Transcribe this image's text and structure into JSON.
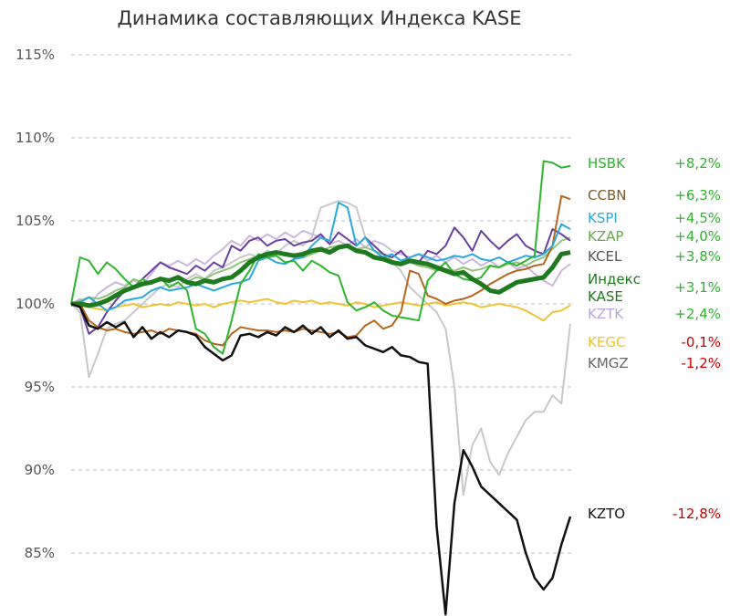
{
  "chart_data": {
    "type": "line",
    "title": "Динамика составляющих Индекса KASE",
    "xlabel": "",
    "ylabel": "",
    "ylim": [
      82,
      116
    ],
    "y_ticks": [
      "85%",
      "90%",
      "95%",
      "100%",
      "105%",
      "110%",
      "115%"
    ],
    "grid": "horizontal dashed",
    "legend": "right",
    "series": [
      {
        "name": "HSBK",
        "change": "+8,2%",
        "color": "#2db52d",
        "name_color": "#2db52d",
        "change_color": "#2db52d",
        "width": 2,
        "values": [
          100.0,
          102.8,
          102.6,
          101.8,
          102.5,
          102.1,
          101.5,
          101.0,
          101.5,
          101.2,
          101.6,
          101.0,
          101.3,
          100.8,
          98.5,
          98.2,
          97.4,
          97.0,
          99.0,
          101.2,
          102.0,
          103.0,
          102.8,
          102.9,
          102.5,
          102.6,
          102.0,
          102.6,
          102.3,
          101.9,
          101.7,
          100.1,
          99.6,
          99.8,
          100.1,
          99.6,
          99.3,
          99.2,
          99.1,
          99.0,
          101.4,
          102.0,
          102.5,
          101.8,
          101.5,
          101.4,
          101.6,
          102.3,
          102.2,
          102.5,
          102.3,
          102.6,
          102.9,
          108.6,
          108.5,
          108.2,
          108.3
        ]
      },
      {
        "name": "CCBN",
        "change": "+6,3%",
        "color": "#b5651d",
        "name_color": "#7a5a2a",
        "change_color": "#2db52d",
        "width": 2,
        "values": [
          100.0,
          100.0,
          99.0,
          98.6,
          98.4,
          98.5,
          98.3,
          98.2,
          98.3,
          98.4,
          98.2,
          98.5,
          98.4,
          98.3,
          98.2,
          97.8,
          97.6,
          97.5,
          98.2,
          98.6,
          98.5,
          98.4,
          98.4,
          98.3,
          98.4,
          98.3,
          98.5,
          98.4,
          98.3,
          98.2,
          98.3,
          98.0,
          98.1,
          98.7,
          99.0,
          98.5,
          98.7,
          99.5,
          102.0,
          101.8,
          100.5,
          100.3,
          100.0,
          100.2,
          100.3,
          100.5,
          100.8,
          101.2,
          101.5,
          101.8,
          102.0,
          102.1,
          102.3,
          102.4,
          103.5,
          106.5,
          106.3
        ]
      },
      {
        "name": "KSPI",
        "change": "+4,5%",
        "color": "#29a8e0",
        "name_color": "#29a8e0",
        "change_color": "#2db52d",
        "width": 2,
        "values": [
          100.0,
          100.1,
          100.4,
          100.0,
          99.6,
          99.8,
          100.2,
          100.3,
          100.4,
          100.8,
          101.0,
          100.8,
          100.9,
          101.0,
          101.2,
          101.0,
          100.8,
          101.0,
          101.2,
          101.3,
          101.5,
          102.6,
          102.8,
          102.5,
          102.4,
          102.7,
          102.8,
          103.5,
          104.0,
          103.8,
          106.1,
          105.8,
          103.5,
          104.0,
          103.2,
          102.8,
          103.0,
          102.6,
          102.8,
          103.0,
          102.8,
          102.6,
          102.7,
          102.9,
          102.8,
          103.0,
          102.7,
          102.6,
          102.8,
          102.5,
          102.7,
          102.9,
          102.8,
          103.0,
          103.5,
          104.8,
          104.5
        ]
      },
      {
        "name": "KZAP",
        "change": "+4,0%",
        "color": "#93c47d",
        "name_color": "#6aa84f",
        "change_color": "#2db52d",
        "width": 2,
        "values": [
          100.0,
          100.2,
          100.4,
          100.3,
          100.5,
          100.8,
          101.0,
          101.5,
          101.3,
          101.2,
          101.6,
          101.4,
          101.5,
          101.3,
          101.6,
          101.5,
          101.8,
          102.0,
          102.2,
          102.5,
          102.7,
          102.9,
          103.0,
          103.1,
          102.9,
          103.0,
          102.8,
          103.0,
          103.2,
          103.4,
          103.5,
          103.6,
          103.3,
          103.4,
          103.2,
          103.0,
          102.6,
          102.4,
          102.5,
          102.3,
          102.2,
          102.0,
          102.1,
          102.0,
          102.2,
          102.0,
          102.1,
          102.3,
          102.2,
          102.4,
          102.5,
          102.3,
          102.6,
          102.8,
          103.3,
          103.8,
          104.0
        ]
      },
      {
        "name": "KCEL",
        "change": "+3,8%",
        "color": "#6a3fa0",
        "name_color": "#555555",
        "change_color": "#2db52d",
        "width": 2,
        "values": [
          100.0,
          99.8,
          98.2,
          98.6,
          99.5,
          100.2,
          100.8,
          101.0,
          101.5,
          102.0,
          102.5,
          102.2,
          102.0,
          101.8,
          102.3,
          102.0,
          102.5,
          102.2,
          103.5,
          103.2,
          103.8,
          104.0,
          103.5,
          103.8,
          103.9,
          103.5,
          103.7,
          103.8,
          104.2,
          103.6,
          104.3,
          103.9,
          103.5,
          104.0,
          103.5,
          103.0,
          102.8,
          103.2,
          102.6,
          102.5,
          103.2,
          103.0,
          103.5,
          104.6,
          104.0,
          103.2,
          104.4,
          103.8,
          103.3,
          103.8,
          104.2,
          103.5,
          103.2,
          103.0,
          104.5,
          104.2,
          103.8
        ]
      },
      {
        "name": "Индекс\nKASE",
        "change": "+3,1%",
        "color": "#1f7a1f",
        "name_color": "#1f7a1f",
        "change_color": "#2db52d",
        "width": 5,
        "values": [
          100.0,
          100.0,
          99.9,
          100.0,
          100.2,
          100.5,
          100.8,
          101.0,
          101.2,
          101.3,
          101.5,
          101.4,
          101.6,
          101.3,
          101.2,
          101.4,
          101.3,
          101.5,
          101.6,
          102.0,
          102.5,
          102.8,
          103.0,
          103.1,
          103.0,
          102.9,
          103.0,
          103.2,
          103.3,
          103.1,
          103.4,
          103.5,
          103.2,
          103.1,
          102.8,
          102.7,
          102.5,
          102.4,
          102.6,
          102.5,
          102.4,
          102.2,
          102.0,
          101.8,
          101.9,
          101.5,
          101.2,
          100.8,
          100.7,
          101.0,
          101.3,
          101.4,
          101.5,
          101.6,
          102.2,
          103.0,
          103.1
        ]
      },
      {
        "name": "KZTK",
        "change": "+2,4%",
        "color": "#c9b8dc",
        "name_color": "#b4a7d6",
        "change_color": "#2db52d",
        "width": 2,
        "values": [
          100.0,
          100.3,
          99.8,
          100.6,
          101.0,
          101.3,
          101.1,
          101.4,
          101.2,
          101.8,
          102.5,
          102.3,
          102.6,
          102.3,
          102.7,
          102.4,
          102.9,
          103.3,
          103.8,
          103.5,
          104.1,
          103.8,
          104.2,
          103.9,
          104.3,
          104.0,
          104.4,
          104.2,
          104.0,
          103.6,
          103.8,
          103.5,
          103.9,
          103.4,
          103.8,
          103.6,
          103.2,
          103.0,
          102.8,
          103.0,
          102.6,
          102.9,
          102.5,
          102.8,
          102.4,
          102.7,
          102.3,
          102.6,
          102.2,
          102.5,
          102.1,
          102.3,
          101.8,
          101.4,
          101.1,
          102.0,
          102.4
        ]
      },
      {
        "name": "KEGC",
        "change": "-0,1%",
        "color": "#f1c232",
        "name_color": "#f1c232",
        "change_color": "#cc0000",
        "width": 2,
        "values": [
          100.0,
          99.9,
          99.8,
          99.7,
          99.6,
          99.8,
          99.9,
          100.0,
          99.8,
          99.9,
          100.0,
          99.9,
          100.1,
          100.0,
          99.9,
          100.0,
          99.8,
          100.0,
          100.1,
          100.2,
          100.1,
          100.2,
          100.3,
          100.1,
          100.0,
          100.2,
          100.1,
          100.2,
          100.0,
          100.1,
          100.0,
          99.9,
          100.1,
          100.0,
          99.8,
          99.9,
          100.0,
          100.1,
          100.0,
          99.9,
          100.0,
          100.1,
          99.9,
          100.0,
          100.1,
          100.0,
          99.8,
          99.9,
          100.0,
          99.9,
          99.8,
          99.6,
          99.3,
          99.0,
          99.5,
          99.6,
          99.9
        ]
      },
      {
        "name": "KMGZ",
        "change": "-1,2%",
        "color": "#c8c8c8",
        "name_color": "#666666",
        "change_color": "#cc0000",
        "width": 2,
        "values": [
          100.0,
          99.5,
          95.6,
          97.0,
          98.5,
          98.8,
          99.0,
          99.5,
          100.0,
          100.5,
          101.0,
          101.2,
          101.0,
          101.5,
          101.8,
          101.5,
          102.0,
          102.2,
          102.5,
          102.8,
          103.0,
          102.8,
          103.2,
          103.0,
          103.5,
          103.8,
          103.5,
          104.0,
          105.8,
          106.0,
          106.2,
          106.1,
          105.8,
          104.0,
          103.5,
          103.0,
          102.5,
          102.0,
          101.0,
          100.5,
          100.0,
          99.5,
          98.5,
          95.0,
          88.5,
          91.5,
          92.5,
          90.5,
          89.7,
          91.0,
          92.0,
          93.0,
          93.5,
          93.5,
          94.5,
          94.0,
          98.8
        ]
      },
      {
        "name": "KZTO",
        "change": "-12,8%",
        "color": "#111111",
        "name_color": "#111111",
        "change_color": "#cc0000",
        "width": 2.5,
        "values": [
          100.0,
          99.8,
          98.7,
          98.5,
          98.9,
          98.6,
          98.9,
          98.0,
          98.6,
          97.9,
          98.3,
          98.0,
          98.4,
          98.3,
          98.1,
          97.4,
          97.0,
          96.6,
          96.9,
          98.1,
          98.2,
          98.0,
          98.3,
          98.1,
          98.6,
          98.3,
          98.7,
          98.2,
          98.6,
          98.0,
          98.4,
          97.9,
          98.0,
          97.5,
          97.3,
          97.1,
          97.4,
          96.9,
          96.8,
          96.5,
          96.4,
          86.6,
          81.3,
          88.0,
          91.2,
          90.2,
          89.0,
          88.5,
          88.0,
          87.5,
          87.0,
          85.0,
          83.5,
          82.8,
          83.5,
          85.5,
          87.2
        ]
      }
    ]
  }
}
